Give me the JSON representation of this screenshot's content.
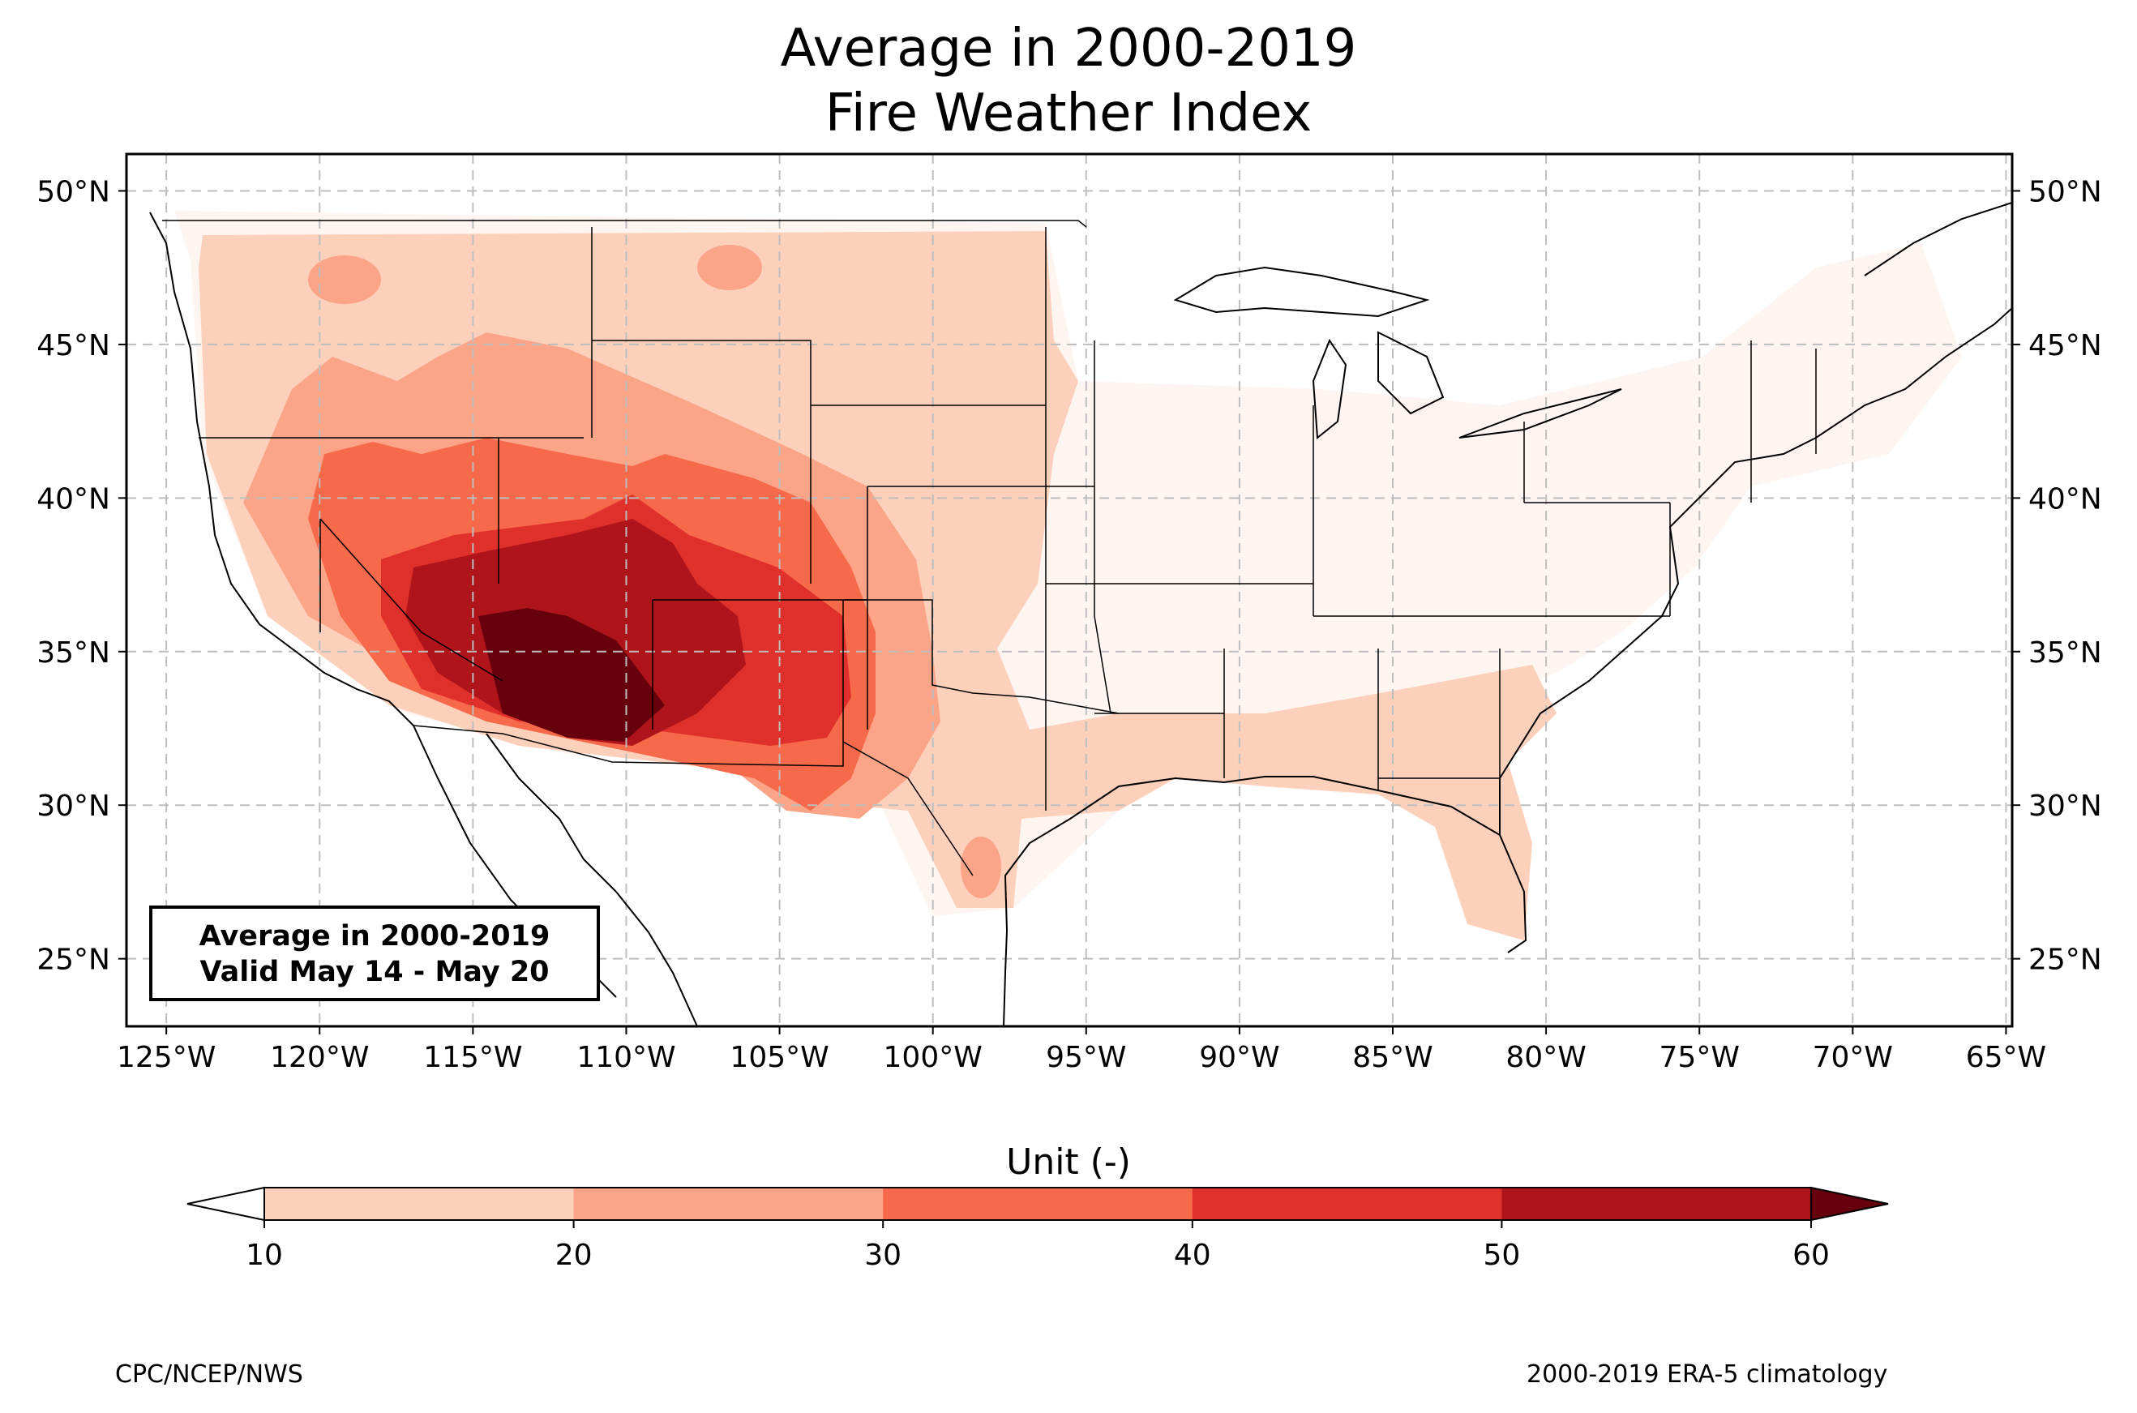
{
  "title_line1": "Average in 2000-2019",
  "title_line2": "Fire Weather Index",
  "map": {
    "lon_ticks": [
      "125°W",
      "120°W",
      "115°W",
      "110°W",
      "105°W",
      "100°W",
      "95°W",
      "90°W",
      "85°W",
      "80°W",
      "75°W",
      "70°W",
      "65°W"
    ],
    "lat_ticks": [
      "50°N",
      "45°N",
      "40°N",
      "35°N",
      "30°N",
      "25°N"
    ],
    "lon_range": [
      -126.3,
      -64.8
    ],
    "lat_range": [
      22.8,
      51.2
    ],
    "gridlines": true,
    "highest_values_region": "Arizona / southwestern US"
  },
  "info_box": {
    "line1": "Average in 2000-2019",
    "line2": "Valid May 14 - May 20"
  },
  "colorbar": {
    "label": "Unit (-)",
    "ticks": [
      "10",
      "20",
      "30",
      "40",
      "50",
      "60"
    ],
    "colors": [
      "#ffffff",
      "#fdd0bb",
      "#fca487",
      "#f7694b",
      "#e0302b",
      "#ae1419",
      "#67000d"
    ],
    "extend": "both"
  },
  "footer_left": "CPC/NCEP/NWS",
  "footer_right": "2000-2019 ERA-5 climatology"
}
